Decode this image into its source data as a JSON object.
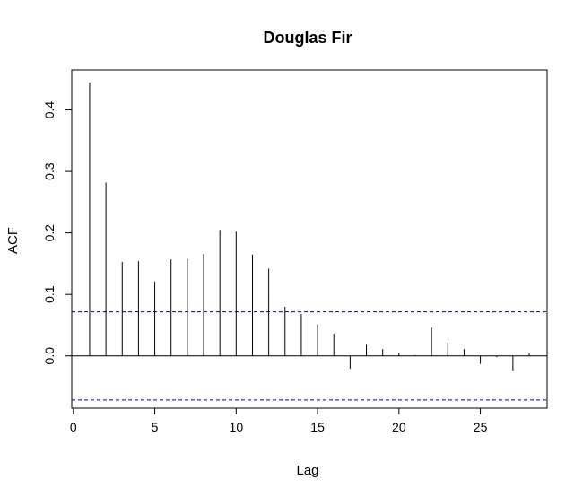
{
  "chart_data": {
    "type": "bar",
    "title": "Douglas Fir",
    "xlabel": "Lag",
    "ylabel": "ACF",
    "x": [
      1,
      2,
      3,
      4,
      5,
      6,
      7,
      8,
      9,
      10,
      11,
      12,
      13,
      14,
      15,
      16,
      17,
      18,
      19,
      20,
      21,
      22,
      23,
      24,
      25,
      26,
      27,
      28
    ],
    "values": [
      0.445,
      0.282,
      0.153,
      0.154,
      0.121,
      0.157,
      0.158,
      0.166,
      0.205,
      0.202,
      0.165,
      0.142,
      0.08,
      0.068,
      0.051,
      0.036,
      -0.021,
      0.018,
      0.011,
      0.005,
      0.001,
      0.046,
      0.022,
      0.011,
      -0.013,
      -0.002,
      -0.024,
      0.004
    ],
    "xlim": [
      -0.1,
      29.1
    ],
    "ylim": [
      -0.085,
      0.465
    ],
    "x_ticks": [
      0,
      5,
      10,
      15,
      20,
      25
    ],
    "y_ticks": [
      0.0,
      0.1,
      0.2,
      0.3,
      0.4
    ],
    "x_tick_labels": [
      "0",
      "5",
      "10",
      "15",
      "20",
      "25"
    ],
    "y_tick_labels": [
      "0.0",
      "0.1",
      "0.2",
      "0.3",
      "0.4"
    ],
    "confidence_bound": 0.0716,
    "confidence_color": "#0000cc",
    "grid": false,
    "legend": "none"
  }
}
